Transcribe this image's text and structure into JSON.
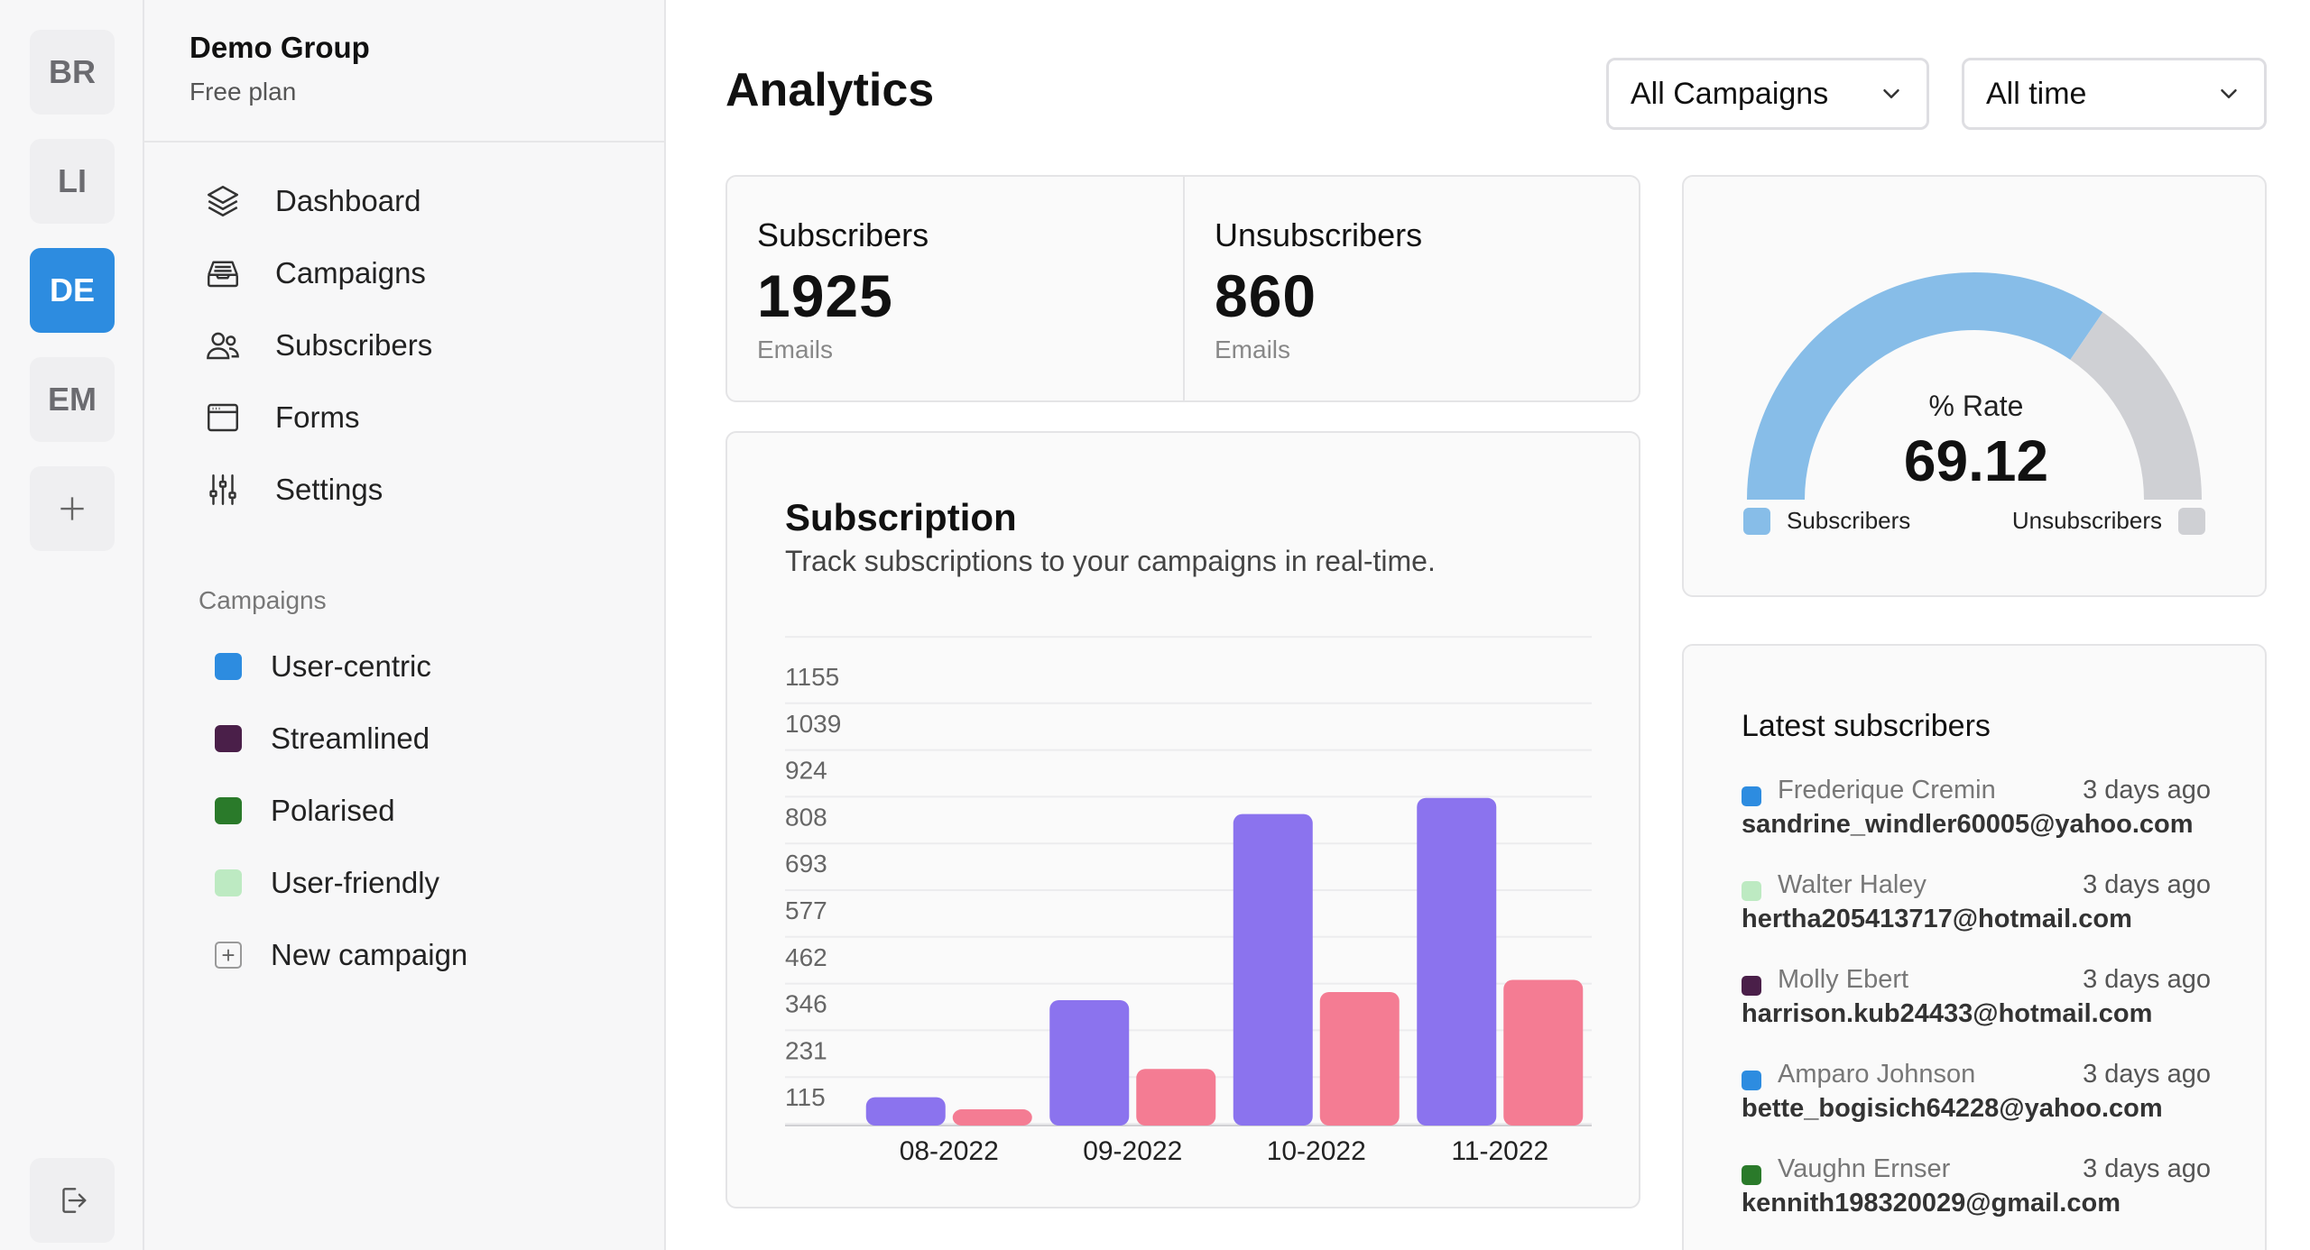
{
  "colors": {
    "accent": "#2d8ce0",
    "bar_subscribers": "#8b73ee",
    "bar_unsubscribers": "#f47c93",
    "gauge_subscribers": "#87bde8",
    "gauge_unsubscribers": "#cfd0d4"
  },
  "workspaces": [
    {
      "label": "BR",
      "active": false
    },
    {
      "label": "LI",
      "active": false
    },
    {
      "label": "DE",
      "active": true
    },
    {
      "label": "EM",
      "active": false
    }
  ],
  "workspace_icons": {
    "add": "plus-icon",
    "logout": "logout-icon"
  },
  "sidebar": {
    "group_name": "Demo Group",
    "group_plan": "Free plan",
    "nav": [
      {
        "label": "Dashboard",
        "icon": "layers-icon"
      },
      {
        "label": "Campaigns",
        "icon": "inbox-icon"
      },
      {
        "label": "Subscribers",
        "icon": "users-icon"
      },
      {
        "label": "Forms",
        "icon": "window-icon"
      },
      {
        "label": "Settings",
        "icon": "sliders-icon"
      }
    ],
    "campaigns_label": "Campaigns",
    "campaigns": [
      {
        "label": "User-centric",
        "color": "#2d8ce0"
      },
      {
        "label": "Streamlined",
        "color": "#4a1f49"
      },
      {
        "label": "Polarised",
        "color": "#2a7a2a"
      },
      {
        "label": "User-friendly",
        "color": "#bdeac2"
      }
    ],
    "new_campaign": "New campaign"
  },
  "header": {
    "title": "Analytics",
    "campaign_filter": "All Campaigns",
    "time_filter": "All time"
  },
  "stats": {
    "subscribers": {
      "label": "Subscribers",
      "value": "1925",
      "unit": "Emails"
    },
    "unsubscribers": {
      "label": "Unsubscribers",
      "value": "860",
      "unit": "Emails"
    }
  },
  "subscription_card": {
    "title": "Subscription",
    "subtitle": "Track subscriptions to your campaigns in real-time."
  },
  "gauge": {
    "label": "% Rate",
    "value": "69.12",
    "fraction": 0.6912,
    "legend_subscribers": "Subscribers",
    "legend_unsubscribers": "Unsubscribers"
  },
  "latest": {
    "title": "Latest subscribers",
    "items": [
      {
        "name": "Frederique Cremin",
        "time": "3 days ago",
        "email": "sandrine_windler60005@yahoo.com",
        "color": "#2d8ce0"
      },
      {
        "name": "Walter Haley",
        "time": "3 days ago",
        "email": "hertha205413717@hotmail.com",
        "color": "#bdeac2"
      },
      {
        "name": "Molly Ebert",
        "time": "3 days ago",
        "email": "harrison.kub24433@hotmail.com",
        "color": "#4a1f49"
      },
      {
        "name": "Amparo Johnson",
        "time": "3 days ago",
        "email": "bette_bogisich64228@yahoo.com",
        "color": "#2d8ce0"
      },
      {
        "name": "Vaughn Ernser",
        "time": "3 days ago",
        "email": "kennith198320029@gmail.com",
        "color": "#2a7a2a"
      }
    ]
  },
  "chart_data": {
    "type": "bar",
    "title": "Subscription",
    "categories": [
      "08-2022",
      "09-2022",
      "10-2022",
      "11-2022"
    ],
    "series": [
      {
        "name": "Subscribers",
        "values": [
          70,
          310,
          770,
          810
        ]
      },
      {
        "name": "Unsubscribers",
        "values": [
          40,
          140,
          330,
          360
        ]
      }
    ],
    "yticks": [
      115,
      231,
      346,
      462,
      577,
      693,
      808,
      924,
      1039,
      1155
    ],
    "ylim": [
      0,
      1155
    ],
    "grid": true,
    "xlabel": "",
    "ylabel": ""
  }
}
